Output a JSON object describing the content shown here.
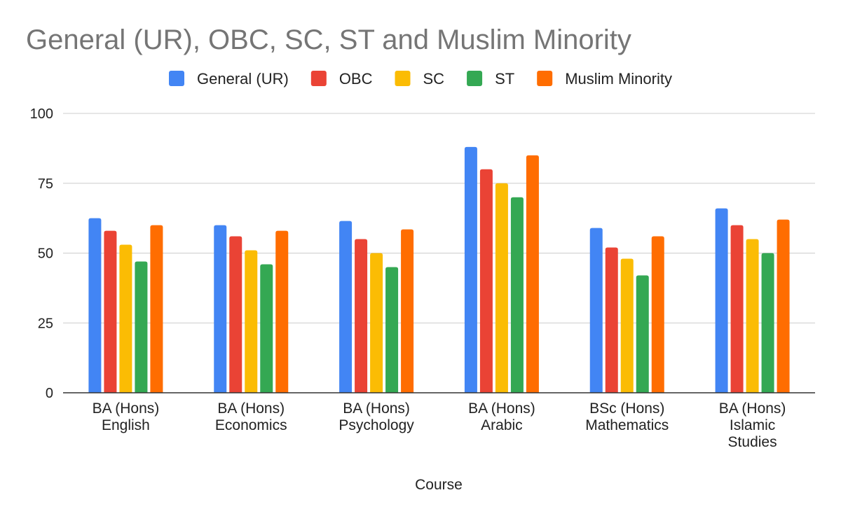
{
  "chart_data": {
    "type": "bar",
    "title": "General (UR), OBC, SC, ST and Muslim Minority",
    "xlabel": "Course",
    "ylabel": "",
    "ylim": [
      0,
      100
    ],
    "yticks": [
      0,
      25,
      50,
      75,
      100
    ],
    "grid": true,
    "legend_position": "top",
    "categories": [
      [
        "BA (Hons)",
        "English"
      ],
      [
        "BA (Hons)",
        "Economics"
      ],
      [
        "BA (Hons)",
        "Psychology"
      ],
      [
        "BA (Hons)",
        "Arabic"
      ],
      [
        "BSc (Hons)",
        "Mathematics"
      ],
      [
        "BA (Hons)",
        "Islamic",
        "Studies"
      ]
    ],
    "series": [
      {
        "name": "General (UR)",
        "color": "#4285F4",
        "values": [
          62.5,
          60,
          61.5,
          88,
          59,
          66
        ]
      },
      {
        "name": "OBC",
        "color": "#EA4335",
        "values": [
          58,
          56,
          55,
          80,
          52,
          60
        ]
      },
      {
        "name": "SC",
        "color": "#FBBC04",
        "values": [
          53,
          51,
          50,
          75,
          48,
          55
        ]
      },
      {
        "name": "ST",
        "color": "#34A853",
        "values": [
          47,
          46,
          45,
          70,
          42,
          50
        ]
      },
      {
        "name": "Muslim Minority",
        "color": "#FF6D01",
        "values": [
          60,
          58,
          58.5,
          85,
          56,
          62
        ]
      }
    ]
  }
}
